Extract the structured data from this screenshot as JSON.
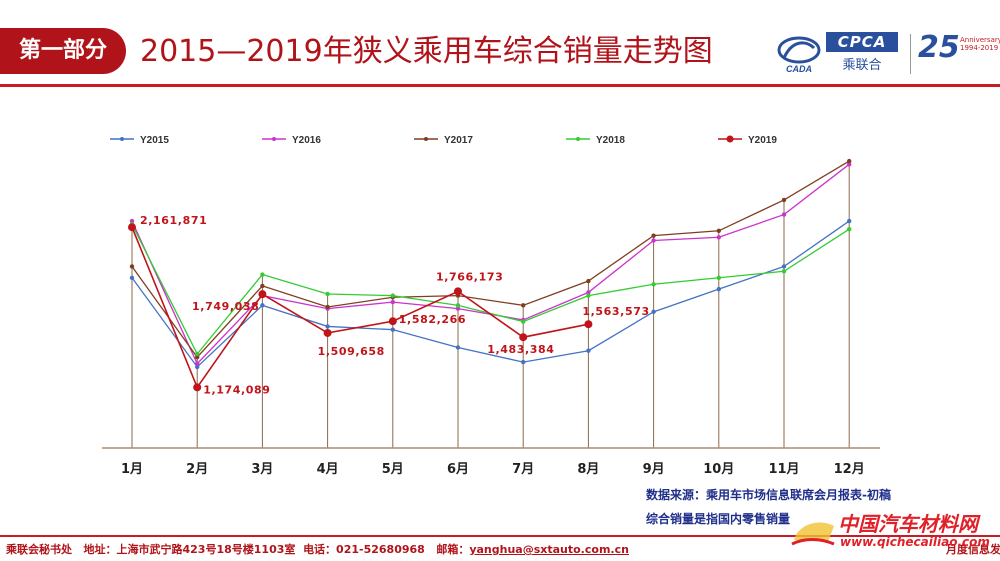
{
  "header": {
    "section_tab": "第一部分",
    "title": "2015—2019年狭义乘用车综合销量走势图",
    "logo_cpca_text": "CPCA",
    "logo_cpca_sub": "乘联合",
    "logo_cada_text": "CADA",
    "logo_25_num": "25",
    "logo_25_text": "Anniversary 1994-2019"
  },
  "notes": {
    "source": "数据来源：乘用车市场信息联席会月报表-初稿",
    "definition": "综合销量是指国内零售销量"
  },
  "footer": {
    "org": "乘联会秘书处",
    "address": "地址：上海市武宁路423号18号楼1103室",
    "phone": "电话：021-52680968",
    "email_label": "邮箱：",
    "email": "yanghua@sxtauto.com.cn",
    "right": "月度信息发布"
  },
  "watermark": {
    "text": "中国汽车材料网",
    "url": "www.qichecailiao.com"
  },
  "chart_data": {
    "type": "line",
    "title": "",
    "xlabel": "",
    "ylabel": "",
    "categories": [
      "1月",
      "2月",
      "3月",
      "4月",
      "5月",
      "6月",
      "7月",
      "8月",
      "9月",
      "10月",
      "11月",
      "12月"
    ],
    "ylim": [
      800000,
      2700000
    ],
    "grid": false,
    "legend_position": "top",
    "series": [
      {
        "name": "Y2015",
        "color": "#4472c4",
        "values": [
          1850000,
          1300000,
          1680000,
          1550000,
          1530000,
          1420000,
          1330000,
          1400000,
          1640000,
          1780000,
          1920000,
          2200000
        ]
      },
      {
        "name": "Y2016",
        "color": "#cc33cc",
        "values": [
          2200000,
          1320000,
          1740000,
          1660000,
          1700000,
          1660000,
          1590000,
          1760000,
          2080000,
          2100000,
          2240000,
          2550000
        ]
      },
      {
        "name": "Y2017",
        "color": "#7f3f1f",
        "values": [
          1920000,
          1360000,
          1800000,
          1670000,
          1730000,
          1740000,
          1680000,
          1830000,
          2110000,
          2140000,
          2330000,
          2570000
        ]
      },
      {
        "name": "Y2018",
        "color": "#33cc33",
        "values": [
          2180000,
          1380000,
          1870000,
          1750000,
          1740000,
          1680000,
          1580000,
          1740000,
          1810000,
          1850000,
          1890000,
          2150000
        ]
      },
      {
        "name": "Y2019",
        "color": "#c0141a",
        "values": [
          2161871,
          1174089,
          1749038,
          1509658,
          1582266,
          1766173,
          1483384,
          1563573,
          null,
          null,
          null,
          null
        ],
        "labels": [
          "2,161,871",
          "1,174,089",
          "1,749,038",
          "1,509,658",
          "1,582,266",
          "1,766,173",
          "1,483,384",
          "1,563,573",
          null,
          null,
          null,
          null
        ]
      }
    ]
  }
}
